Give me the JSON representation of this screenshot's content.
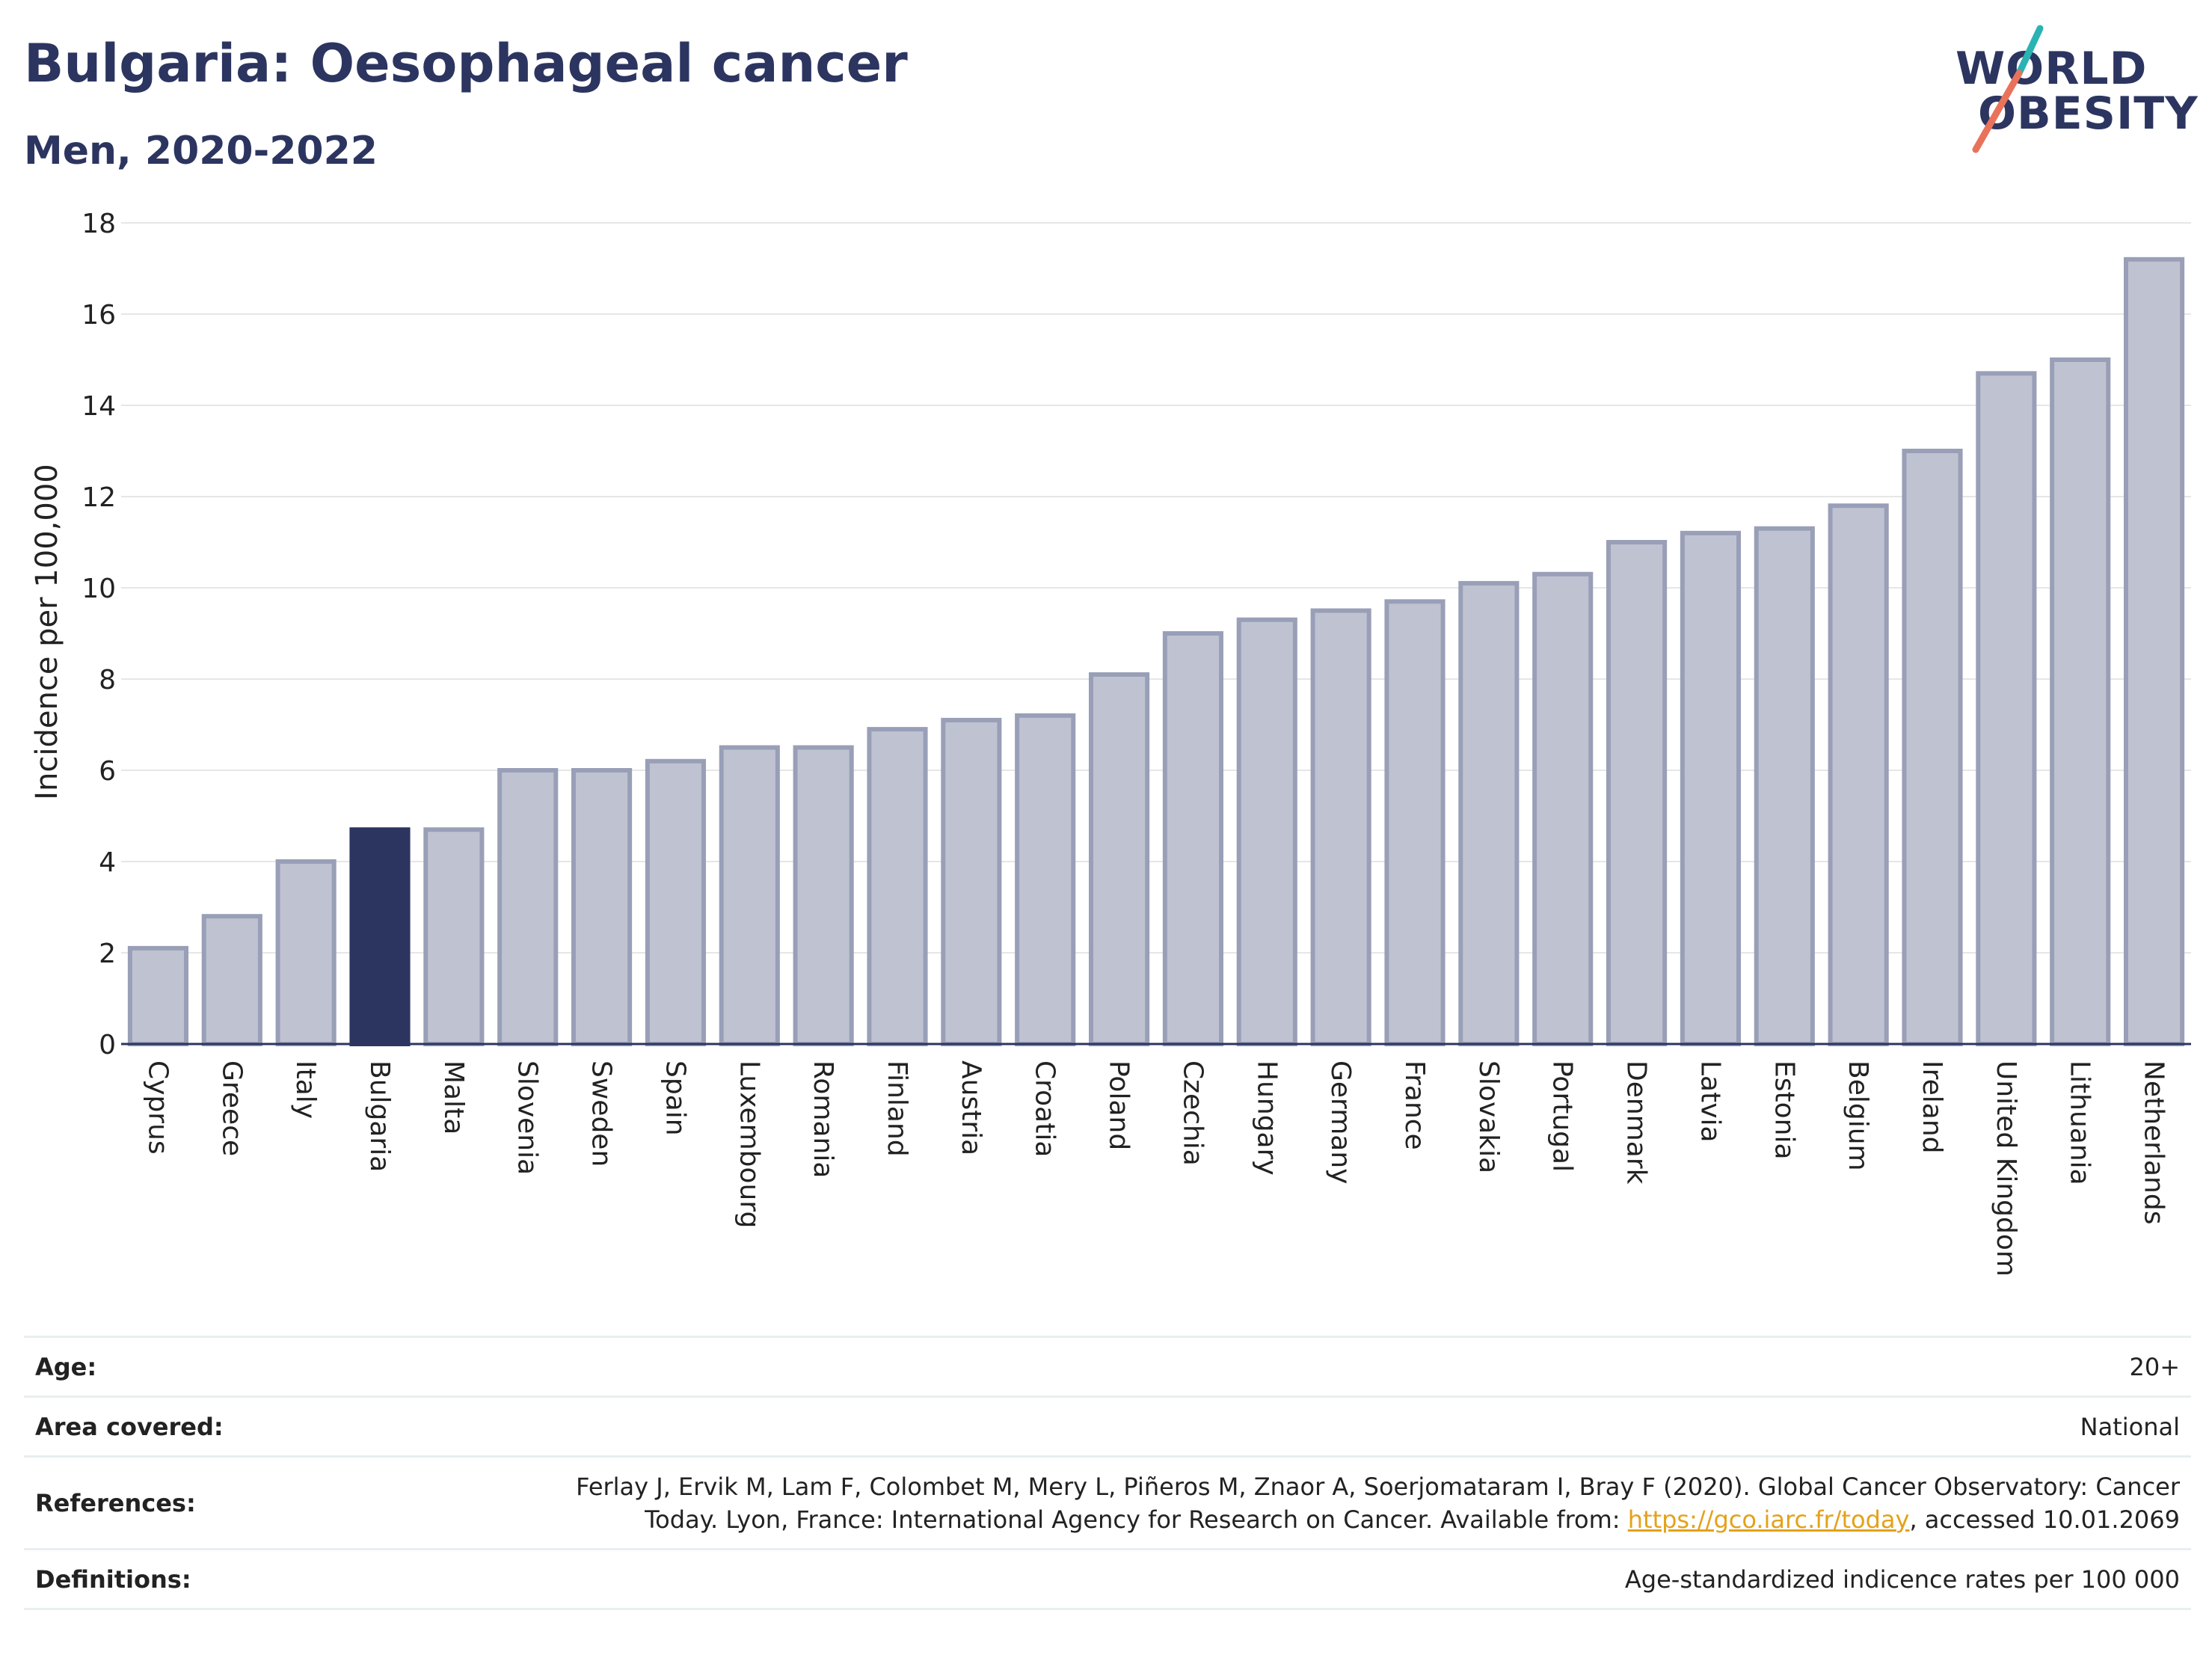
{
  "header": {
    "title": "Bulgaria: Oesophageal cancer",
    "subtitle": "Men, 2020-2022"
  },
  "logo": {
    "line1": "WORLD",
    "line2": "OBESITY",
    "colors": {
      "text": "#2c3560",
      "slash_top": "#2bb3b3",
      "slash_bottom": "#e8735a"
    }
  },
  "chart_data": {
    "type": "bar",
    "ylabel": "Incidence per 100,000",
    "xlabel": "",
    "ylim": [
      0,
      18
    ],
    "yticks": [
      0,
      2,
      4,
      6,
      8,
      10,
      12,
      14,
      16,
      18
    ],
    "grid": true,
    "highlight": "Bulgaria",
    "colors": {
      "bar": "#bfc3d1",
      "bar_edge": "#9a9fb8",
      "highlight": "#2c3560",
      "grid": "#e6e6e6",
      "axis": "#2c3560"
    },
    "categories": [
      "Cyprus",
      "Greece",
      "Italy",
      "Bulgaria",
      "Malta",
      "Slovenia",
      "Sweden",
      "Spain",
      "Luxembourg",
      "Romania",
      "Finland",
      "Austria",
      "Croatia",
      "Poland",
      "Czechia",
      "Hungary",
      "Germany",
      "France",
      "Slovakia",
      "Portugal",
      "Denmark",
      "Latvia",
      "Estonia",
      "Belgium",
      "Ireland",
      "United Kingdom",
      "Lithuania",
      "Netherlands"
    ],
    "values": [
      2.1,
      2.8,
      4.0,
      4.7,
      4.7,
      6.0,
      6.0,
      6.2,
      6.5,
      6.5,
      6.9,
      7.1,
      7.2,
      8.1,
      9.0,
      9.3,
      9.5,
      9.7,
      10.1,
      10.3,
      11.0,
      11.2,
      11.3,
      11.8,
      13.0,
      14.7,
      15.0,
      17.2
    ]
  },
  "meta": {
    "age": {
      "label": "Age:",
      "value": "20+"
    },
    "area": {
      "label": "Area covered:",
      "value": "National"
    },
    "references": {
      "label": "References:",
      "line1": "Ferlay J, Ervik M, Lam F, Colombet M, Mery L, Piñeros M, Znaor A, Soerjomataram I, Bray F (2020). Global Cancer Observatory: Cancer",
      "line2_prefix": "Today. Lyon, France: International Agency for Research on Cancer. Available from: ",
      "link_text": "https://gco.iarc.fr/today",
      "line2_suffix": ", accessed 10.01.2069"
    },
    "definitions": {
      "label": "Definitions:",
      "value": "Age-standardized indicence rates per 100 000"
    }
  }
}
